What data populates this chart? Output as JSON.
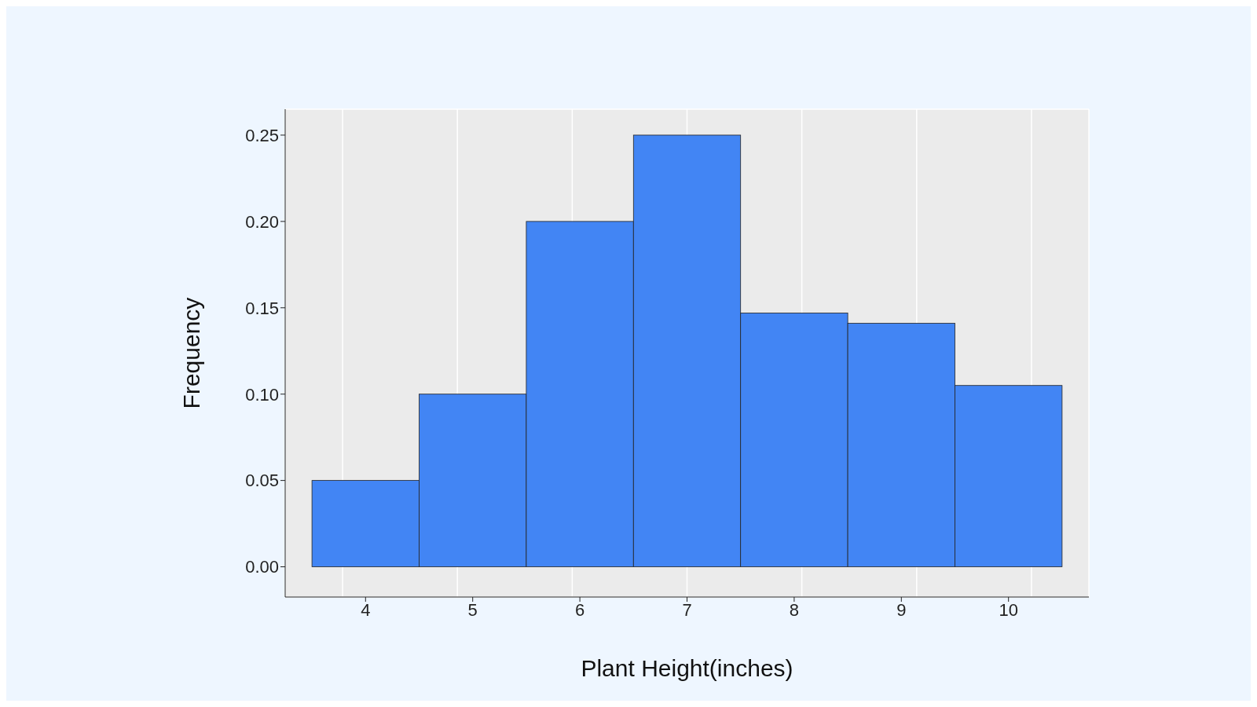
{
  "chart_data": {
    "type": "histogram",
    "xlabel": "Plant Height(inches)",
    "ylabel": "Frequency",
    "bins": [
      3.5,
      4.5,
      5.5,
      6.5,
      7.5,
      8.5,
      9.5,
      10.5
    ],
    "values": [
      0.05,
      0.1,
      0.2,
      0.25,
      0.147,
      0.141,
      0.105
    ],
    "color": "#4285f4",
    "xlim": [
      3.25,
      10.75
    ],
    "xticks": [
      4,
      5,
      6,
      7,
      8,
      9,
      10
    ],
    "ylim": [
      -0.0175,
      0.265
    ],
    "yticks": [
      {
        "value": 0,
        "label": "0.00"
      },
      {
        "value": 0.05,
        "label": "0.05"
      },
      {
        "value": 0.1,
        "label": "0.10"
      },
      {
        "value": 0.15,
        "label": "0.15"
      },
      {
        "value": 0.2,
        "label": "0.20"
      },
      {
        "value": 0.25,
        "label": "0.25"
      }
    ],
    "grid": true
  }
}
